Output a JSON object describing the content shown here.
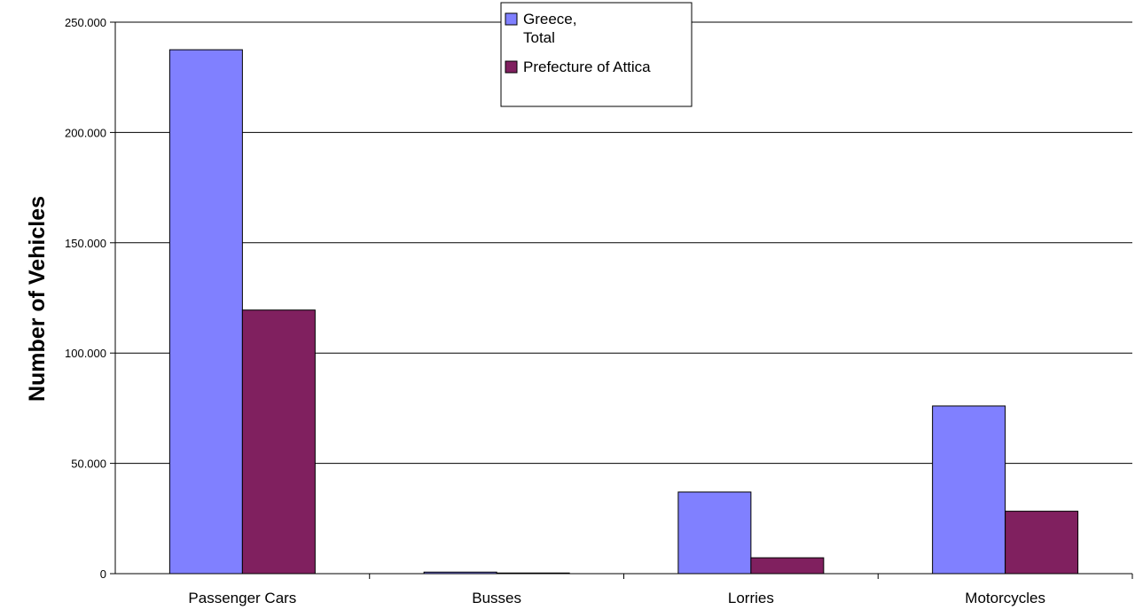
{
  "chart_data": {
    "type": "bar",
    "title": "",
    "xlabel": "",
    "ylabel": "Number of Vehicles",
    "categories": [
      "Passenger Cars",
      "Busses",
      "Lorries",
      "Motorcycles"
    ],
    "series": [
      {
        "name": "Greece, Total",
        "name_lines": [
          "Greece,",
          "Total"
        ],
        "color": "#8080ff",
        "values": [
          237500,
          700,
          37000,
          76000
        ]
      },
      {
        "name": "Prefecture of Attica",
        "name_lines": [
          "Prefecture of Attica"
        ],
        "color": "#80205f",
        "values": [
          119500,
          300,
          7200,
          28300
        ]
      }
    ],
    "ylim": [
      0,
      250000
    ],
    "yticks": [
      0,
      50000,
      100000,
      150000,
      200000,
      250000
    ],
    "ytick_labels": [
      "0",
      "50.000",
      "100.000",
      "150.000",
      "200.000",
      "250.000"
    ],
    "grid": true,
    "legend_position": "top-center"
  }
}
